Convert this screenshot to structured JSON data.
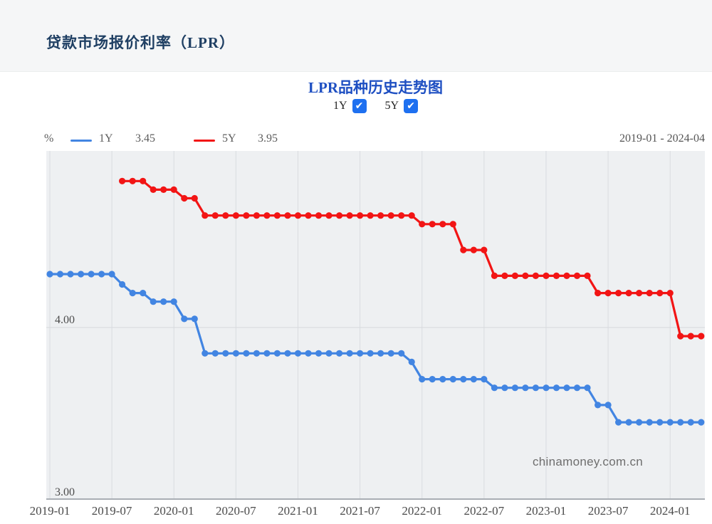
{
  "header": {
    "title": "贷款市场报价利率（LPR）"
  },
  "chart": {
    "title": "LPR品种历史走势图",
    "toggles": [
      {
        "label": "1Y",
        "checked": true
      },
      {
        "label": "5Y",
        "checked": true
      }
    ],
    "legend": {
      "unit": "%",
      "series": [
        {
          "label": "1Y",
          "value": "3.45"
        },
        {
          "label": "5Y",
          "value": "3.95"
        }
      ],
      "date_range": "2019-01 - 2024-04"
    },
    "watermark": "chinamoney.com.cn"
  },
  "icons": {
    "checkmark": "✔"
  },
  "colors": {
    "series_1y": "#4285e2",
    "series_5y": "#f21515",
    "checkbox": "#1e70f0",
    "chart_title": "#1e4fc2",
    "header_title": "#1f3f63",
    "plot_bg": "#eef0f2",
    "grid_v": "#d9dce0",
    "grid_h": "#d6d9dc",
    "axis": "#a9aeb4"
  },
  "chart_data": {
    "type": "line",
    "title": "LPR品种历史走势图",
    "x_start": "2019-01",
    "x_end": "2024-04",
    "x_interval": "monthly",
    "x_tick_labels": [
      "2019-01",
      "2019-07",
      "2020-01",
      "2020-07",
      "2021-01",
      "2021-07",
      "2022-01",
      "2022-07",
      "2023-01",
      "2023-07",
      "2024-01"
    ],
    "y_ticks": [
      {
        "label": "4.00",
        "value": 4.0
      },
      {
        "label": "3.00",
        "value": 3.0
      }
    ],
    "ylim": [
      3.0,
      5.02
    ],
    "grid": true,
    "legend_position": "top-left",
    "series": [
      {
        "name": "1Y",
        "color": "#4285e2",
        "current": 3.45,
        "values": [
          4.31,
          4.31,
          4.31,
          4.31,
          4.31,
          4.31,
          4.31,
          4.25,
          4.2,
          4.2,
          4.15,
          4.15,
          4.15,
          4.05,
          4.05,
          3.85,
          3.85,
          3.85,
          3.85,
          3.85,
          3.85,
          3.85,
          3.85,
          3.85,
          3.85,
          3.85,
          3.85,
          3.85,
          3.85,
          3.85,
          3.85,
          3.85,
          3.85,
          3.85,
          3.85,
          3.8,
          3.7,
          3.7,
          3.7,
          3.7,
          3.7,
          3.7,
          3.7,
          3.65,
          3.65,
          3.65,
          3.65,
          3.65,
          3.65,
          3.65,
          3.65,
          3.65,
          3.65,
          3.55,
          3.55,
          3.45,
          3.45,
          3.45,
          3.45,
          3.45,
          3.45,
          3.45,
          3.45,
          3.45
        ]
      },
      {
        "name": "5Y",
        "color": "#f21515",
        "current": 3.95,
        "values": [
          null,
          null,
          null,
          null,
          null,
          null,
          null,
          4.85,
          4.85,
          4.85,
          4.8,
          4.8,
          4.8,
          4.75,
          4.75,
          4.65,
          4.65,
          4.65,
          4.65,
          4.65,
          4.65,
          4.65,
          4.65,
          4.65,
          4.65,
          4.65,
          4.65,
          4.65,
          4.65,
          4.65,
          4.65,
          4.65,
          4.65,
          4.65,
          4.65,
          4.65,
          4.6,
          4.6,
          4.6,
          4.6,
          4.45,
          4.45,
          4.45,
          4.3,
          4.3,
          4.3,
          4.3,
          4.3,
          4.3,
          4.3,
          4.3,
          4.3,
          4.3,
          4.2,
          4.2,
          4.2,
          4.2,
          4.2,
          4.2,
          4.2,
          4.2,
          3.95,
          3.95,
          3.95
        ]
      }
    ]
  }
}
